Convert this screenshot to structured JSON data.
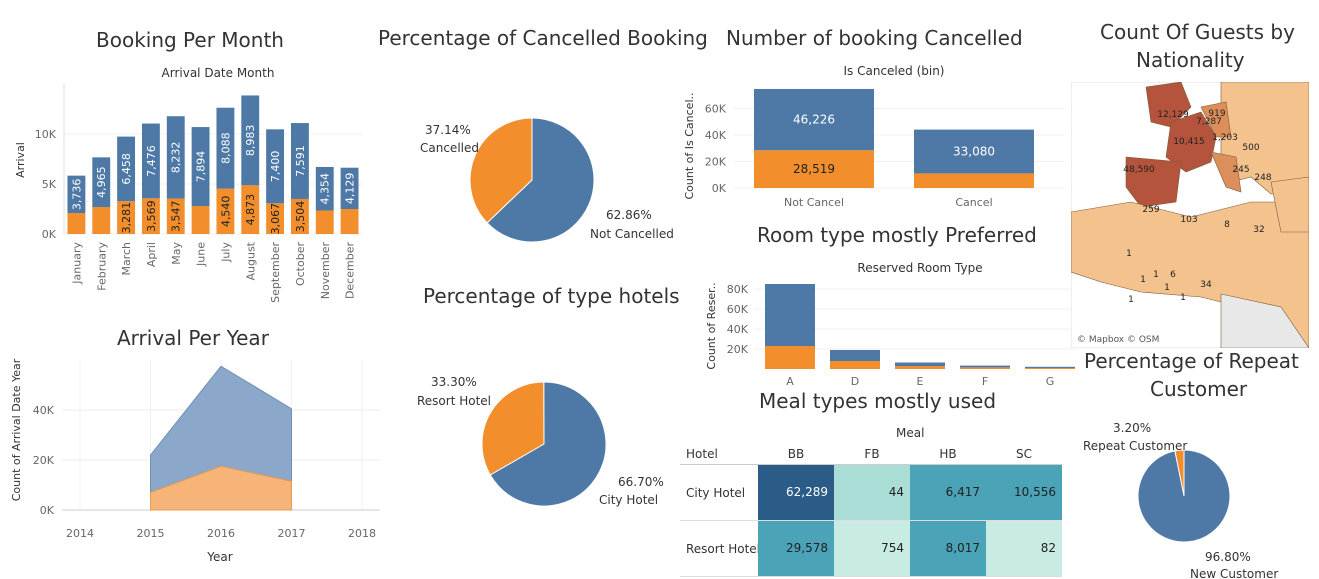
{
  "colors": {
    "blue": "#4e79a7",
    "orange": "#f28e2b",
    "map_dark": "#b5543d",
    "map_mid": "#dc8f5a",
    "map_light": "#f3c28d",
    "water": "#ffffff",
    "meal_dark": "#2b5b87",
    "meal_mid": "#4aa3b6",
    "meal_light": "#a9ddd5",
    "meal_pale": "#c8ebe4"
  },
  "booking_per_month": {
    "title": "Booking Per Month",
    "header": "Arrival Date Month",
    "ylabel": "Arrival",
    "yticks": [
      "10K",
      "5K",
      "0K"
    ],
    "chart_data": {
      "type": "bar",
      "categories": [
        "January",
        "February",
        "March",
        "April",
        "May",
        "June",
        "July",
        "August",
        "September",
        "October",
        "November",
        "December"
      ],
      "series": [
        {
          "name": "Not Cancelled",
          "values": [
            3736,
            4965,
            6458,
            7476,
            8232,
            7894,
            8088,
            8983,
            7400,
            7591,
            4354,
            4129
          ]
        },
        {
          "name": "Cancelled",
          "values": [
            2100,
            2700,
            3281,
            3569,
            3547,
            2800,
            4540,
            4873,
            3067,
            3504,
            2350,
            2500
          ]
        }
      ],
      "labels_top": [
        "3,736",
        "4,965",
        "6,458",
        "7,476",
        "8,232",
        "7,894",
        "8,088",
        "8,983",
        "7,400",
        "7,591",
        "4,354",
        "4,129"
      ],
      "labels_bottom": [
        "",
        "",
        "3,281",
        "3,569",
        "3,547",
        "",
        "4,540",
        "4,873",
        "3,067",
        "3,504",
        "",
        ""
      ],
      "ylim": [
        0,
        15000
      ]
    }
  },
  "arrival_per_year": {
    "title": "Arrival Per Year",
    "ylabel": "Count of Arrival Date Year",
    "xlabel": "Year",
    "yticks": [
      "40K",
      "20K",
      "0K"
    ],
    "xticks": [
      "2014",
      "2015",
      "2016",
      "2017",
      "2018"
    ],
    "chart_data": {
      "type": "area",
      "x": [
        2015,
        2016,
        2017
      ],
      "series": [
        {
          "name": "Not Cancelled",
          "values": [
            15000,
            40000,
            29000
          ]
        },
        {
          "name": "Cancelled",
          "values": [
            7000,
            17500,
            11500
          ]
        }
      ],
      "ylim": [
        0,
        60000
      ]
    }
  },
  "pct_cancelled": {
    "title": "Percentage of Cancelled Booking",
    "chart_data": {
      "type": "pie",
      "labels": [
        "Cancelled",
        "Not Cancelled"
      ],
      "values": [
        37.14,
        62.86
      ],
      "pct": [
        "37.14%",
        "62.86%"
      ]
    }
  },
  "pct_hotels": {
    "title": "Percentage of type hotels",
    "chart_data": {
      "type": "pie",
      "labels": [
        "Resort Hotel",
        "City Hotel"
      ],
      "values": [
        33.3,
        66.7
      ],
      "pct": [
        "33.30%",
        "66.70%"
      ]
    }
  },
  "num_cancelled": {
    "title": "Number of booking Cancelled",
    "header": "Is Canceled (bin)",
    "ylabel": "Count of Is Cancel..",
    "yticks": [
      "60K",
      "40K",
      "20K",
      "0K"
    ],
    "chart_data": {
      "type": "bar",
      "categories": [
        "Not Cancel",
        "Cancel"
      ],
      "series": [
        {
          "name": "Top",
          "values": [
            46226,
            33080
          ]
        },
        {
          "name": "Bottom",
          "values": [
            28519,
            11000
          ]
        }
      ],
      "labels_top": [
        "46,226",
        "33,080"
      ],
      "labels_bottom": [
        "28,519",
        ""
      ],
      "ylim": [
        0,
        80000
      ]
    }
  },
  "room_type": {
    "title": "Room type mostly Preferred",
    "header": "Reserved Room Type",
    "ylabel": "Count of Reser..",
    "yticks": [
      "80K",
      "60K",
      "40K",
      "20K"
    ],
    "chart_data": {
      "type": "bar",
      "categories": [
        "A",
        "D",
        "E",
        "F",
        "G"
      ],
      "series": [
        {
          "name": "Top",
          "values": [
            62000,
            11000,
            3500,
            1800,
            1200
          ]
        },
        {
          "name": "Bottom",
          "values": [
            23000,
            8000,
            3000,
            1600,
            1000
          ]
        }
      ],
      "ylim": [
        0,
        90000
      ]
    }
  },
  "meal": {
    "title": "Meal types mostly used",
    "header": "Meal",
    "row_header": "Hotel",
    "columns": [
      "BB",
      "FB",
      "HB",
      "SC"
    ],
    "rows": [
      {
        "name": "City Hotel",
        "values": [
          "62,289",
          "44",
          "6,417",
          "10,556"
        ]
      },
      {
        "name": "Resort Hotel",
        "values": [
          "29,578",
          "754",
          "8,017",
          "82"
        ]
      }
    ]
  },
  "nationality": {
    "title_line1": "Count Of Guests by",
    "title_line2": "Nationality",
    "credit": "© Mapbox © OSM",
    "labels": [
      "12,129",
      "7,287",
      "919",
      "10,415",
      "1,203",
      "500",
      "48,590",
      "245",
      "248",
      "259",
      "103",
      "8",
      "32",
      "1",
      "1",
      "6",
      "34",
      "1",
      "1",
      "1",
      "1"
    ]
  },
  "repeat": {
    "title_line1": "Percentage of Repeat",
    "title_line2": "Customer",
    "chart_data": {
      "type": "pie",
      "labels": [
        "Repeat Customer",
        "New Customer"
      ],
      "values": [
        3.2,
        96.8
      ],
      "pct": [
        "3.20%",
        "96.80%"
      ]
    }
  }
}
